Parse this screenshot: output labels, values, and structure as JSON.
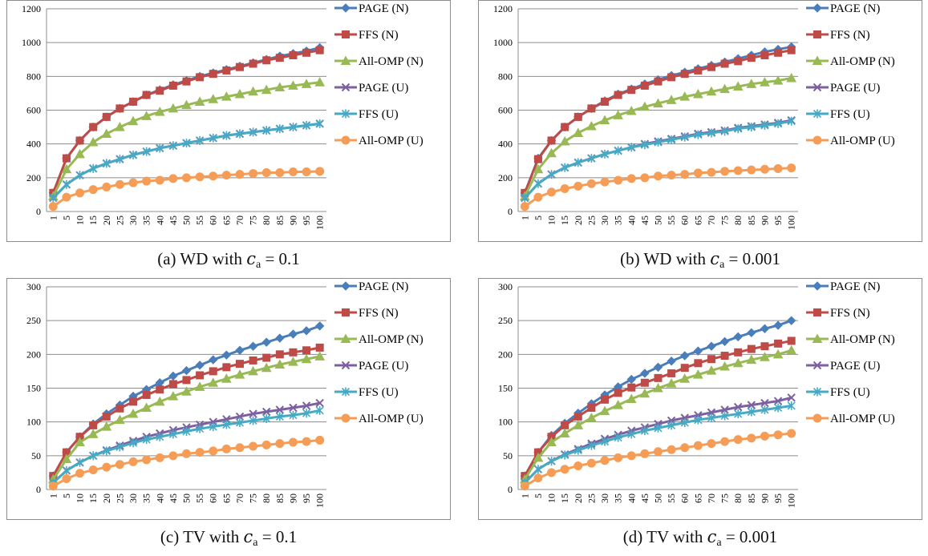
{
  "colors": {
    "PAGE (N)": "#4a7ebb",
    "FFS (N)": "#be4b48",
    "All-OMP (N)": "#98b954",
    "PAGE (U)": "#7d60a0",
    "FFS (U)": "#46aac5",
    "All-OMP (U)": "#f59d56"
  },
  "markers": {
    "PAGE (N)": "diamond",
    "FFS (N)": "square",
    "All-OMP (N)": "triangle",
    "PAGE (U)": "x",
    "FFS (U)": "star",
    "All-OMP (U)": "circle"
  },
  "panels": [
    {
      "caption": {
        "prefix": "(a) WD with ",
        "var": "c",
        "sub": "a",
        "eq": " = 0.1"
      }
    },
    {
      "caption": {
        "prefix": "(b) WD with ",
        "var": "c",
        "sub": "a",
        "eq": " = 0.001"
      }
    },
    {
      "caption": {
        "prefix": "(c) TV with ",
        "var": "c",
        "sub": "a",
        "eq": " = 0.1"
      }
    },
    {
      "caption": {
        "prefix": "(d) TV with ",
        "var": "c",
        "sub": "a",
        "eq": " = 0.001"
      }
    }
  ],
  "chart_data": [
    {
      "type": "line",
      "title": "",
      "xlabel": "",
      "ylabel": "",
      "x": [
        1,
        5,
        10,
        15,
        20,
        25,
        30,
        35,
        40,
        45,
        50,
        55,
        60,
        65,
        70,
        75,
        80,
        85,
        90,
        95,
        100
      ],
      "ylim": [
        0,
        1200
      ],
      "yticks": [
        0,
        200,
        400,
        600,
        800,
        1000,
        1200
      ],
      "grid": "horizontal",
      "legend": "right",
      "series": [
        {
          "name": "PAGE (N)",
          "values": [
            110,
            315,
            420,
            500,
            560,
            610,
            650,
            690,
            720,
            750,
            775,
            800,
            820,
            840,
            860,
            880,
            900,
            920,
            935,
            950,
            970
          ]
        },
        {
          "name": "FFS (N)",
          "values": [
            110,
            315,
            420,
            500,
            560,
            610,
            650,
            690,
            715,
            745,
            770,
            795,
            815,
            835,
            855,
            875,
            895,
            910,
            925,
            940,
            955
          ]
        },
        {
          "name": "All-OMP (N)",
          "values": [
            90,
            250,
            340,
            410,
            460,
            500,
            535,
            565,
            590,
            610,
            630,
            650,
            665,
            680,
            695,
            710,
            720,
            735,
            745,
            755,
            765
          ]
        },
        {
          "name": "PAGE (U)",
          "values": [
            80,
            160,
            215,
            255,
            285,
            310,
            335,
            355,
            375,
            390,
            405,
            420,
            435,
            450,
            460,
            470,
            480,
            490,
            500,
            510,
            520
          ]
        },
        {
          "name": "FFS (U)",
          "values": [
            80,
            160,
            215,
            255,
            285,
            310,
            335,
            355,
            375,
            390,
            405,
            420,
            435,
            450,
            460,
            470,
            480,
            490,
            500,
            510,
            520
          ]
        },
        {
          "name": "All-OMP (U)",
          "values": [
            30,
            85,
            110,
            130,
            145,
            160,
            170,
            180,
            185,
            195,
            200,
            205,
            210,
            215,
            220,
            225,
            230,
            230,
            235,
            235,
            238
          ]
        }
      ]
    },
    {
      "type": "line",
      "title": "",
      "xlabel": "",
      "ylabel": "",
      "x": [
        1,
        5,
        10,
        15,
        20,
        25,
        30,
        35,
        40,
        45,
        50,
        55,
        60,
        65,
        70,
        75,
        80,
        85,
        90,
        95,
        100
      ],
      "ylim": [
        0,
        1200
      ],
      "yticks": [
        0,
        200,
        400,
        600,
        800,
        1000,
        1200
      ],
      "grid": "horizontal",
      "legend": "right",
      "series": [
        {
          "name": "PAGE (N)",
          "values": [
            110,
            315,
            420,
            500,
            560,
            610,
            655,
            695,
            725,
            755,
            780,
            805,
            825,
            845,
            865,
            885,
            905,
            925,
            945,
            960,
            975
          ]
        },
        {
          "name": "FFS (N)",
          "values": [
            110,
            310,
            420,
            500,
            560,
            610,
            650,
            690,
            720,
            745,
            770,
            795,
            815,
            835,
            855,
            875,
            890,
            910,
            925,
            940,
            955
          ]
        },
        {
          "name": "All-OMP (N)",
          "values": [
            90,
            250,
            345,
            415,
            465,
            505,
            540,
            570,
            595,
            620,
            640,
            660,
            680,
            695,
            710,
            725,
            740,
            755,
            765,
            775,
            790
          ]
        },
        {
          "name": "PAGE (U)",
          "values": [
            80,
            165,
            220,
            260,
            290,
            315,
            340,
            360,
            380,
            400,
            415,
            430,
            445,
            460,
            470,
            480,
            495,
            505,
            515,
            525,
            540
          ]
        },
        {
          "name": "FFS (U)",
          "values": [
            80,
            165,
            220,
            260,
            290,
            315,
            340,
            360,
            380,
            395,
            410,
            425,
            440,
            455,
            465,
            475,
            490,
            500,
            510,
            520,
            535
          ]
        },
        {
          "name": "All-OMP (U)",
          "values": [
            30,
            85,
            115,
            135,
            150,
            165,
            175,
            185,
            195,
            200,
            210,
            215,
            220,
            228,
            232,
            238,
            242,
            246,
            250,
            254,
            258
          ]
        }
      ]
    },
    {
      "type": "line",
      "title": "",
      "xlabel": "",
      "ylabel": "",
      "x": [
        1,
        5,
        10,
        15,
        20,
        25,
        30,
        35,
        40,
        45,
        50,
        55,
        60,
        65,
        70,
        75,
        80,
        85,
        90,
        95,
        100
      ],
      "ylim": [
        0,
        300
      ],
      "yticks": [
        0,
        50,
        100,
        150,
        200,
        250,
        300
      ],
      "grid": "horizontal",
      "legend": "right",
      "series": [
        {
          "name": "PAGE (N)",
          "values": [
            20,
            55,
            78,
            97,
            112,
            125,
            138,
            148,
            158,
            168,
            176,
            184,
            192,
            199,
            206,
            212,
            218,
            224,
            230,
            235,
            242
          ]
        },
        {
          "name": "FFS (N)",
          "values": [
            20,
            55,
            78,
            95,
            108,
            120,
            130,
            140,
            148,
            156,
            162,
            169,
            175,
            181,
            186,
            191,
            195,
            200,
            203,
            206,
            210
          ]
        },
        {
          "name": "All-OMP (N)",
          "values": [
            15,
            45,
            70,
            82,
            93,
            103,
            112,
            121,
            130,
            138,
            145,
            152,
            158,
            164,
            170,
            175,
            180,
            185,
            189,
            193,
            197
          ]
        },
        {
          "name": "PAGE (U)",
          "values": [
            10,
            28,
            40,
            50,
            58,
            65,
            72,
            78,
            83,
            88,
            92,
            96,
            100,
            104,
            108,
            112,
            115,
            118,
            121,
            124,
            128
          ]
        },
        {
          "name": "FFS (U)",
          "values": [
            10,
            28,
            40,
            50,
            57,
            63,
            69,
            74,
            78,
            82,
            86,
            90,
            93,
            96,
            99,
            102,
            105,
            108,
            110,
            113,
            117
          ]
        },
        {
          "name": "All-OMP (U)",
          "values": [
            5,
            16,
            24,
            29,
            33,
            37,
            41,
            44,
            47,
            50,
            53,
            55,
            57,
            60,
            62,
            64,
            66,
            68,
            70,
            71,
            73
          ]
        }
      ]
    },
    {
      "type": "line",
      "title": "",
      "xlabel": "",
      "ylabel": "",
      "x": [
        1,
        5,
        10,
        15,
        20,
        25,
        30,
        35,
        40,
        45,
        50,
        55,
        60,
        65,
        70,
        75,
        80,
        85,
        90,
        95,
        100
      ],
      "ylim": [
        0,
        300
      ],
      "yticks": [
        0,
        50,
        100,
        150,
        200,
        250,
        300
      ],
      "grid": "horizontal",
      "legend": "right",
      "series": [
        {
          "name": "PAGE (N)",
          "values": [
            20,
            55,
            80,
            98,
            113,
            127,
            140,
            152,
            163,
            172,
            181,
            190,
            198,
            205,
            212,
            219,
            226,
            232,
            238,
            243,
            250
          ]
        },
        {
          "name": "FFS (N)",
          "values": [
            20,
            55,
            78,
            95,
            108,
            121,
            133,
            143,
            151,
            158,
            165,
            172,
            180,
            187,
            193,
            198,
            203,
            208,
            212,
            216,
            220
          ]
        },
        {
          "name": "All-OMP (N)",
          "values": [
            15,
            47,
            70,
            83,
            95,
            106,
            116,
            125,
            134,
            142,
            150,
            157,
            164,
            170,
            176,
            182,
            187,
            192,
            196,
            200,
            206
          ]
        },
        {
          "name": "PAGE (U)",
          "values": [
            10,
            30,
            42,
            52,
            60,
            68,
            75,
            81,
            87,
            92,
            97,
            102,
            106,
            110,
            114,
            118,
            122,
            125,
            128,
            131,
            136
          ]
        },
        {
          "name": "FFS (U)",
          "values": [
            10,
            30,
            42,
            51,
            58,
            65,
            71,
            77,
            82,
            87,
            91,
            95,
            99,
            103,
            106,
            109,
            112,
            115,
            118,
            121,
            124
          ]
        },
        {
          "name": "All-OMP (U)",
          "values": [
            5,
            17,
            25,
            30,
            35,
            39,
            43,
            47,
            50,
            53,
            56,
            59,
            62,
            65,
            68,
            71,
            74,
            76,
            79,
            81,
            83
          ]
        }
      ]
    }
  ]
}
